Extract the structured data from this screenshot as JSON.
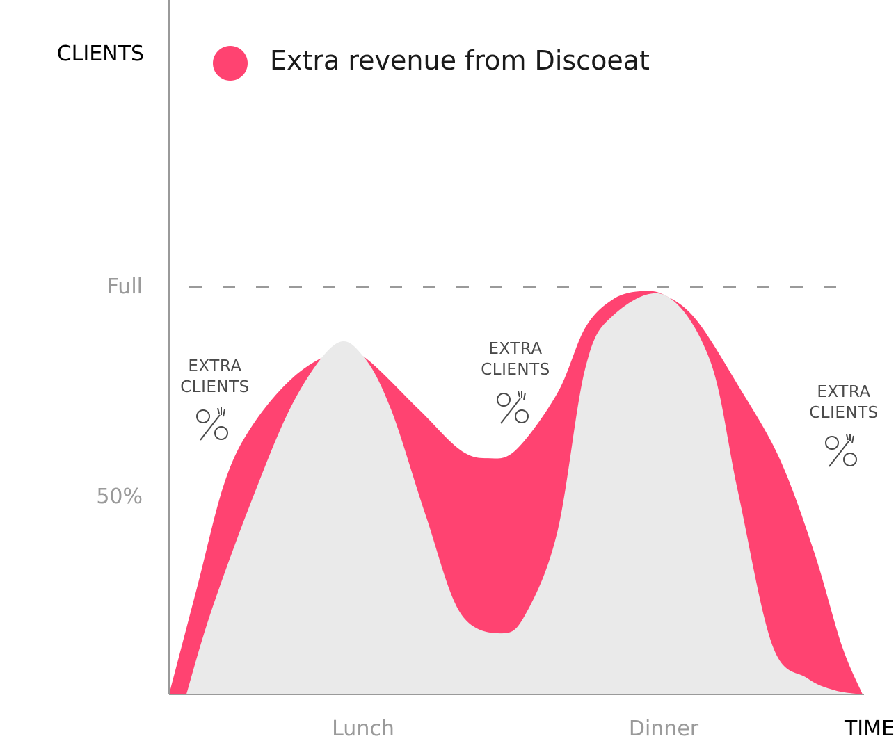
{
  "chart_data": {
    "type": "area",
    "ylabel": "CLIENTS",
    "xlabel": "TIME",
    "y_ticks": [
      "Full",
      "50%"
    ],
    "y_tick_values": [
      100,
      50
    ],
    "x_ticks": [
      "Lunch",
      "Dinner"
    ],
    "x_tick_values": [
      28,
      71.5
    ],
    "xlim": [
      0,
      100
    ],
    "ylim": [
      0,
      100
    ],
    "reference_line": {
      "label": "Full",
      "value": 100,
      "style": "dashed"
    },
    "legend": {
      "position": "top",
      "items": [
        {
          "label": "Extra revenue from Discoeat",
          "color": "#ff4371"
        }
      ]
    },
    "series": [
      {
        "name": "",
        "color": "#eaeaea",
        "role": "baseline clients",
        "x": [
          2.5,
          6,
          12,
          18,
          24,
          28,
          32,
          37,
          42,
          48,
          51.5,
          56,
          60,
          64,
          71.5,
          78,
          82,
          87,
          92,
          96,
          100
        ],
        "y": [
          0,
          20,
          48,
          72,
          86,
          83,
          70,
          44,
          20,
          15,
          20,
          40,
          80,
          93,
          98,
          82,
          50,
          12,
          4,
          1,
          0
        ]
      },
      {
        "name": "Extra revenue from Discoeat",
        "color": "#ff4371",
        "role": "total clients with Discoeat",
        "x": [
          0,
          4,
          8,
          12,
          18,
          24,
          28,
          36,
          42,
          46,
          50,
          56,
          60,
          64,
          68,
          71.5,
          76,
          82,
          88,
          93,
          97,
          100
        ],
        "y": [
          0,
          26,
          52,
          66,
          78,
          84,
          83,
          70,
          60,
          58,
          60,
          74,
          90,
          97,
          99,
          98,
          92,
          76,
          58,
          35,
          12,
          0
        ]
      }
    ],
    "annotations": [
      {
        "line1": "EXTRA",
        "line2": "CLIENTS",
        "icon": "percent-fork-icon"
      },
      {
        "line1": "EXTRA",
        "line2": "CLIENTS",
        "icon": "percent-fork-icon"
      },
      {
        "line1": "EXTRA",
        "line2": "CLIENTS",
        "icon": "percent-fork-icon"
      }
    ]
  }
}
